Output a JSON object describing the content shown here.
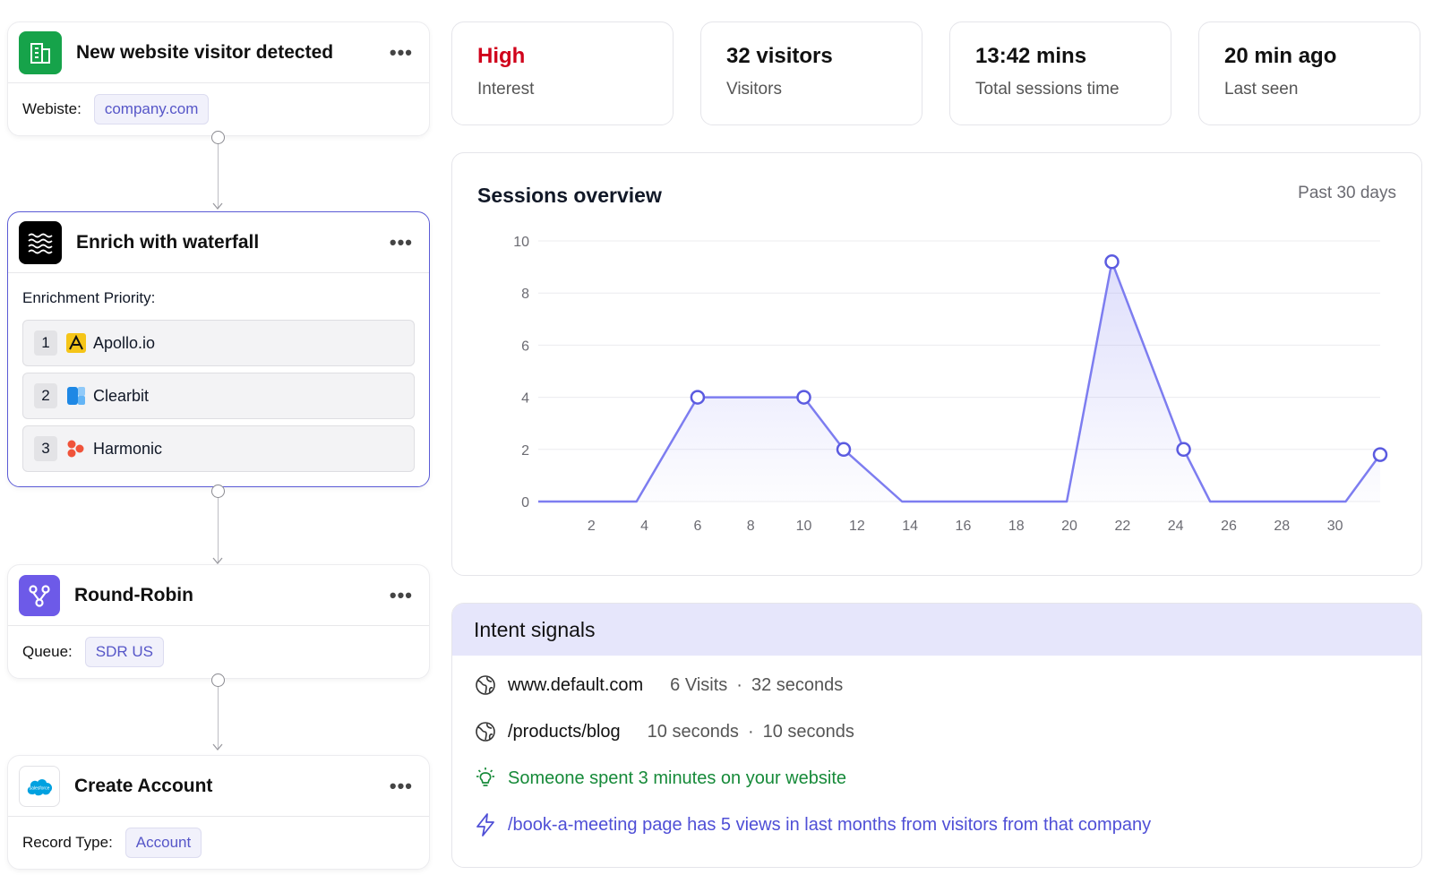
{
  "workflow": {
    "trigger": {
      "title": "New website visitor detected",
      "field_label": "Webiste:",
      "field_value": "company.com"
    },
    "enrich": {
      "title": "Enrich with waterfall",
      "priority_label": "Enrichment Priority:",
      "providers": [
        {
          "rank": "1",
          "name": "Apollo.io"
        },
        {
          "rank": "2",
          "name": "Clearbit"
        },
        {
          "rank": "3",
          "name": "Harmonic"
        }
      ]
    },
    "round_robin": {
      "title": "Round-Robin",
      "field_label": "Queue:",
      "field_value": "SDR US"
    },
    "create_account": {
      "title": "Create Account",
      "field_label": "Record Type:",
      "field_value": "Account",
      "logo_text": "salesforce"
    },
    "more_label": "•••"
  },
  "stats": [
    {
      "value": "High",
      "label": "Interest",
      "color": "#d0021b"
    },
    {
      "value": "32 visitors",
      "label": "Visitors",
      "color": "#111111"
    },
    {
      "value": "13:42 mins",
      "label": "Total sessions time",
      "color": "#111111"
    },
    {
      "value": "20 min ago",
      "label": "Last seen",
      "color": "#111111"
    }
  ],
  "sessions": {
    "title": "Sessions overview",
    "range": "Past 30 days"
  },
  "chart_data": {
    "type": "line",
    "title": "Sessions overview",
    "x_ticks": [
      2,
      4,
      6,
      8,
      10,
      12,
      14,
      16,
      18,
      20,
      22,
      24,
      26,
      28,
      30
    ],
    "y_ticks": [
      0,
      2,
      4,
      6,
      8,
      10
    ],
    "xlim": [
      0,
      31.7
    ],
    "ylim": [
      0,
      10
    ],
    "grid": true,
    "series": [
      {
        "color": "#7d7df0",
        "points": [
          [
            0,
            0
          ],
          [
            3.7,
            0
          ],
          [
            6,
            4
          ],
          [
            10,
            4
          ],
          [
            11.5,
            2
          ],
          [
            13.7,
            0
          ],
          [
            19.9,
            0
          ],
          [
            21.6,
            9.2
          ],
          [
            24.3,
            2
          ],
          [
            25.3,
            0
          ],
          [
            30.4,
            0
          ],
          [
            31.7,
            1.8
          ]
        ],
        "markers": [
          [
            6,
            4
          ],
          [
            10,
            4
          ],
          [
            11.5,
            2
          ],
          [
            21.6,
            9.2
          ],
          [
            24.3,
            2
          ],
          [
            31.7,
            1.8
          ]
        ]
      }
    ]
  },
  "intent": {
    "title": "Intent signals",
    "signals": [
      {
        "site": "www.default.com",
        "left": "6 Visits",
        "sep": "·",
        "right": "32 seconds"
      },
      {
        "site": "/products/blog",
        "left": "10 seconds",
        "sep": "·",
        "right": "10 seconds"
      }
    ],
    "insight": "Someone spent 3 minutes on your website",
    "alert": "/book-a-meeting page has 5 views in last months from visitors from that company",
    "colors": {
      "insight": "#168a39",
      "alert": "#4f4fd6"
    }
  }
}
